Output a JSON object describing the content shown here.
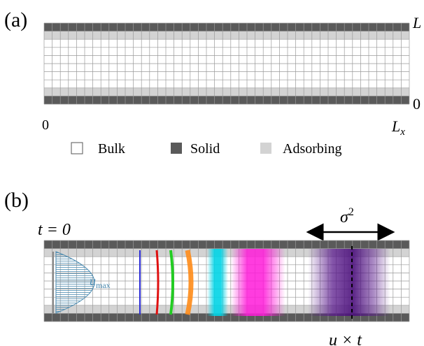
{
  "panel_a": {
    "label": "(a)",
    "y_top_label": "L",
    "y_bottom_label": "0",
    "x_left_label": "0",
    "x_right_label": "L",
    "x_right_sub": "x",
    "legend": [
      {
        "label": "Bulk",
        "color": "#ffffff"
      },
      {
        "label": "Solid",
        "color": "#5a5a5a"
      },
      {
        "label": "Adsorbing",
        "color": "#d3d3d3"
      }
    ]
  },
  "panel_b": {
    "label": "(b)",
    "time_label": "t = 0",
    "sigma_label": "σ",
    "sigma_sup": "2",
    "umax_label": "u",
    "umax_sub": "max",
    "ut_label": "u × t",
    "front_colors": [
      "#2a2ad6",
      "#e01010",
      "#22cc22",
      "#ff8c1a",
      "#00d4e6",
      "#ff1ad9",
      "#5a1a8c"
    ]
  },
  "colors": {
    "solid": "#5a5a5a",
    "adsorbing": "#d3d3d3",
    "grid": "#9a9a9a",
    "profile": "#4a8ab0"
  }
}
